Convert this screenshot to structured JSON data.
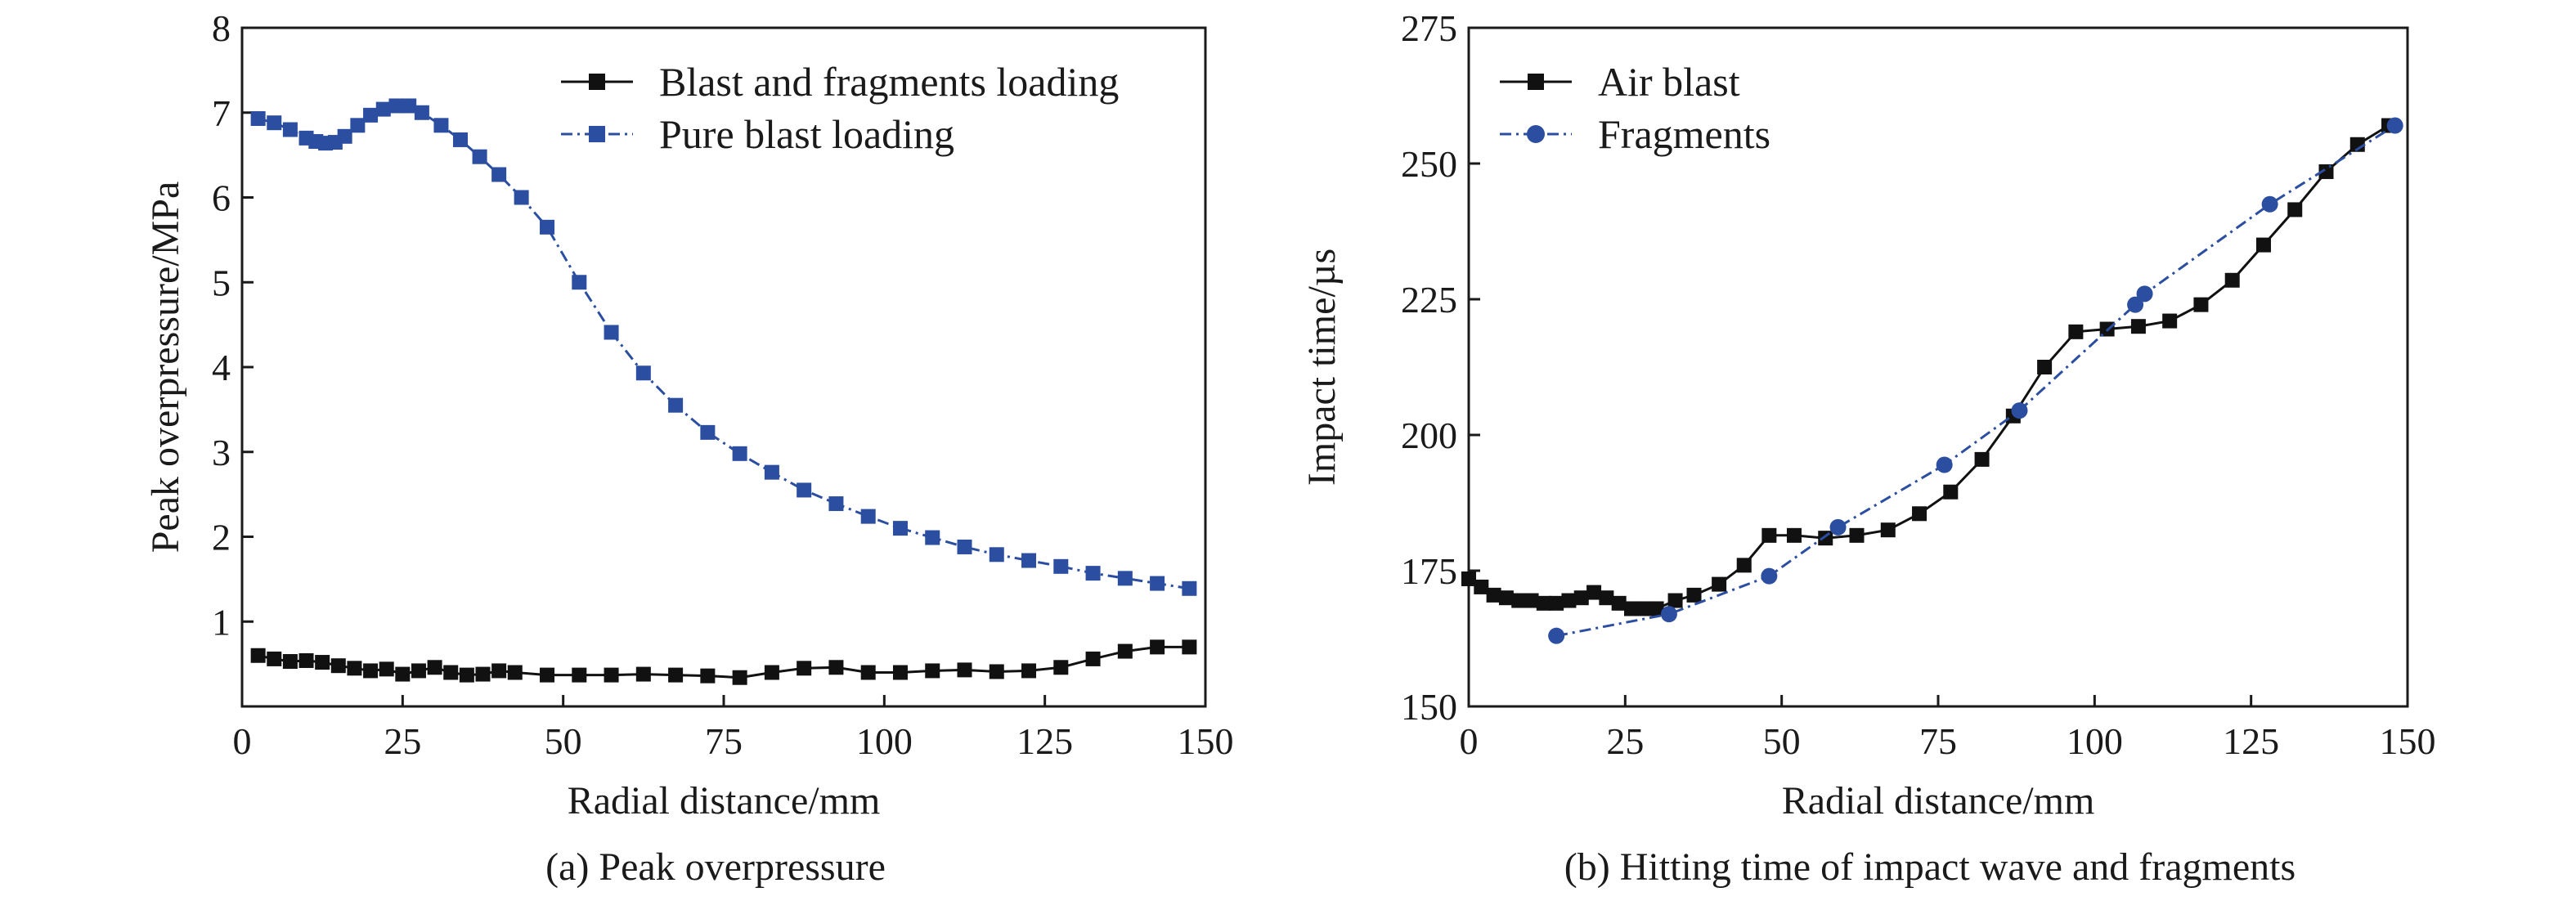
{
  "chart_data": [
    {
      "type": "line",
      "caption": "(a) Peak overpressure",
      "xlabel": "Radial distance/mm",
      "ylabel": "Peak overpressure/MPa",
      "xlim": [
        0,
        150
      ],
      "ylim": [
        0,
        8
      ],
      "xticks": [
        0,
        25,
        50,
        75,
        100,
        125,
        150
      ],
      "yticks": [
        1,
        2,
        3,
        4,
        5,
        6,
        7,
        8
      ],
      "grid": false,
      "legend_position": "top-right",
      "series": [
        {
          "name": "Blast and fragments loading",
          "color": "#111111",
          "line": "solid",
          "marker": "square",
          "x": [
            2.5,
            5,
            7.5,
            10,
            12.5,
            15,
            17.5,
            20,
            22.5,
            25,
            27.5,
            30,
            32.5,
            35,
            37.5,
            40,
            42.5,
            47.5,
            52.5,
            57.5,
            62.5,
            67.5,
            72.5,
            77.5,
            82.5,
            87.5,
            92.5,
            97.5,
            102.5,
            107.5,
            112.5,
            117.5,
            122.5,
            127.5,
            132.5,
            137.5,
            142.5,
            147.5
          ],
          "y": [
            0.6,
            0.56,
            0.53,
            0.54,
            0.52,
            0.48,
            0.45,
            0.42,
            0.44,
            0.38,
            0.42,
            0.46,
            0.4,
            0.37,
            0.38,
            0.42,
            0.4,
            0.37,
            0.37,
            0.37,
            0.38,
            0.37,
            0.36,
            0.34,
            0.4,
            0.45,
            0.46,
            0.4,
            0.4,
            0.42,
            0.43,
            0.41,
            0.42,
            0.46,
            0.56,
            0.65,
            0.7,
            0.7
          ]
        },
        {
          "name": "Pure blast loading",
          "color": "#2b4ea0",
          "line": "dashdot",
          "marker": "square",
          "x": [
            2.5,
            5,
            7.5,
            10,
            11.5,
            13,
            14.5,
            16,
            18,
            20,
            22,
            24,
            26,
            28,
            31,
            34,
            37,
            40,
            43.5,
            47.5,
            52.5,
            57.5,
            62.5,
            67.5,
            72.5,
            77.5,
            82.5,
            87.5,
            92.5,
            97.5,
            102.5,
            107.5,
            112.5,
            117.5,
            122.5,
            127.5,
            132.5,
            137.5,
            142.5,
            147.5
          ],
          "y": [
            6.93,
            6.88,
            6.8,
            6.7,
            6.66,
            6.64,
            6.65,
            6.72,
            6.85,
            6.97,
            7.04,
            7.08,
            7.08,
            7.0,
            6.85,
            6.68,
            6.48,
            6.27,
            6.0,
            5.65,
            5.0,
            4.41,
            3.93,
            3.55,
            3.23,
            2.98,
            2.76,
            2.55,
            2.39,
            2.24,
            2.1,
            1.99,
            1.88,
            1.79,
            1.72,
            1.65,
            1.57,
            1.51,
            1.45,
            1.39
          ]
        }
      ]
    },
    {
      "type": "line",
      "caption": "(b) Hitting time of impact wave and fragments",
      "xlabel": "Radial distance/mm",
      "ylabel": "Impact time/µs",
      "xlim": [
        0,
        150
      ],
      "ylim": [
        150,
        275
      ],
      "xticks": [
        0,
        25,
        50,
        75,
        100,
        125,
        150
      ],
      "yticks": [
        150,
        175,
        200,
        225,
        250,
        275
      ],
      "grid": false,
      "legend_position": "top-left",
      "series": [
        {
          "name": "Air blast",
          "color": "#111111",
          "line": "solid",
          "marker": "square",
          "x": [
            0,
            2,
            4,
            6,
            8,
            10,
            12,
            14,
            16,
            18,
            20,
            22,
            24,
            26,
            28,
            30,
            33,
            36,
            40,
            44,
            48,
            52,
            57,
            62,
            67,
            72,
            77,
            82,
            87,
            92,
            97,
            102,
            107,
            112,
            117,
            122,
            127,
            132,
            137,
            142,
            147
          ],
          "y": [
            173.5,
            172,
            170.5,
            170,
            169.5,
            169.5,
            169,
            169,
            169.5,
            170,
            171,
            170,
            169,
            168,
            168,
            168,
            169.5,
            170.5,
            172.5,
            176,
            181.5,
            181.5,
            181,
            181.5,
            182.5,
            185.5,
            189.5,
            195.5,
            203.5,
            212.5,
            219,
            219.5,
            220,
            221,
            224,
            228.5,
            235,
            241.5,
            248.5,
            253.5,
            257
          ]
        },
        {
          "name": "Fragments",
          "color": "#2b4ea0",
          "line": "dashdot",
          "marker": "circle",
          "x": [
            14,
            32,
            48,
            59,
            76,
            88,
            106.5,
            108,
            128,
            148
          ],
          "y": [
            163,
            167,
            174,
            183,
            194.5,
            204.5,
            224,
            226,
            242.5,
            257
          ]
        }
      ]
    }
  ]
}
